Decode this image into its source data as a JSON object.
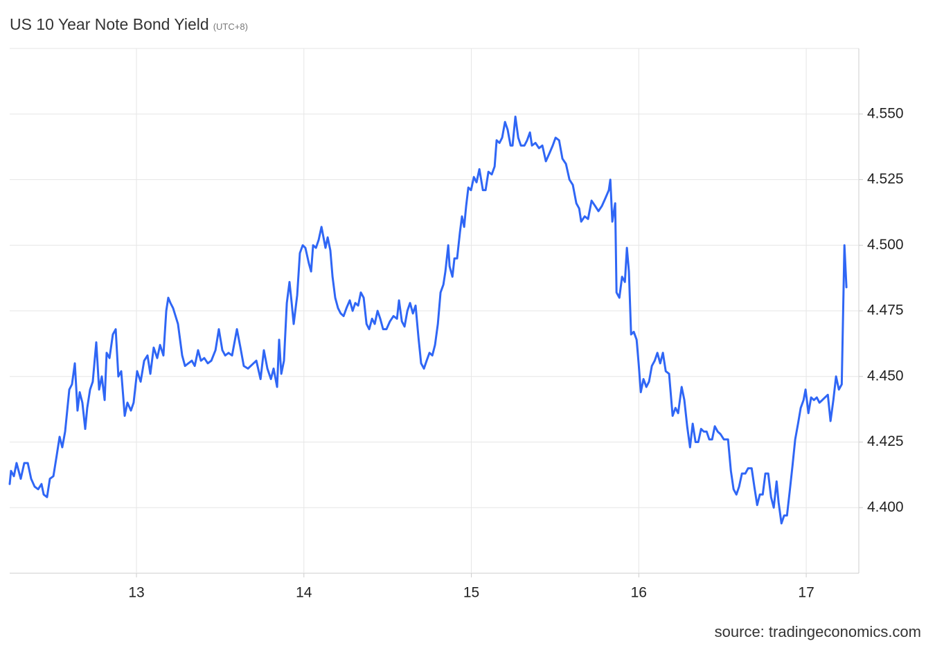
{
  "chart_data": {
    "type": "line",
    "title": "US 10 Year Note Bond Yield",
    "subtitle": "(UTC+8)",
    "source": "source: tradingeconomics.com",
    "color": "#2f66f5",
    "grid": true,
    "y_axis_side": "right",
    "xlim": [
      12.243,
      17.314
    ],
    "xticks": [
      13,
      14,
      15,
      16,
      17
    ],
    "ylim": [
      4.375,
      4.575
    ],
    "yticks": [
      {
        "value": 4.4,
        "label": "4.400"
      },
      4.425,
      {
        "value": 4.45,
        "label": "4.450"
      },
      4.475,
      {
        "value": 4.5,
        "label": "4.500"
      },
      4.525,
      {
        "value": 4.55,
        "label": "4.550"
      }
    ],
    "x": [
      12.243,
      12.251,
      12.268,
      12.284,
      12.309,
      12.33,
      12.351,
      12.371,
      12.392,
      12.413,
      12.433,
      12.446,
      12.466,
      12.483,
      12.504,
      12.524,
      12.541,
      12.557,
      12.574,
      12.599,
      12.615,
      12.632,
      12.648,
      12.661,
      12.677,
      12.694,
      12.706,
      12.723,
      12.739,
      12.76,
      12.777,
      12.793,
      12.81,
      12.822,
      12.839,
      12.859,
      12.876,
      12.892,
      12.909,
      12.93,
      12.946,
      12.967,
      12.983,
      13.004,
      13.025,
      13.046,
      13.066,
      13.083,
      13.103,
      13.124,
      13.141,
      13.161,
      13.178,
      13.19,
      13.203,
      13.219,
      13.248,
      13.273,
      13.29,
      13.31,
      13.331,
      13.348,
      13.368,
      13.385,
      13.405,
      13.426,
      13.447,
      13.472,
      13.492,
      13.513,
      13.53,
      13.55,
      13.571,
      13.6,
      13.621,
      13.641,
      13.666,
      13.699,
      13.716,
      13.741,
      13.761,
      13.782,
      13.803,
      13.819,
      13.84,
      13.852,
      13.865,
      13.881,
      13.898,
      13.914,
      13.927,
      13.939,
      13.96,
      13.976,
      13.993,
      14.009,
      14.03,
      14.043,
      14.055,
      14.072,
      14.088,
      14.105,
      14.117,
      14.129,
      14.142,
      14.158,
      14.171,
      14.187,
      14.204,
      14.22,
      14.237,
      14.254,
      14.274,
      14.291,
      14.307,
      14.324,
      14.34,
      14.357,
      14.374,
      14.39,
      14.407,
      14.423,
      14.44,
      14.456,
      14.473,
      14.493,
      14.514,
      14.535,
      14.556,
      14.568,
      14.585,
      14.601,
      14.618,
      14.634,
      14.651,
      14.667,
      14.684,
      14.7,
      14.717,
      14.733,
      14.75,
      14.767,
      14.783,
      14.8,
      14.816,
      14.833,
      14.845,
      14.862,
      14.87,
      14.887,
      14.899,
      14.915,
      14.932,
      14.944,
      14.957,
      14.969,
      14.982,
      14.998,
      15.015,
      15.031,
      15.048,
      15.069,
      15.085,
      15.102,
      15.122,
      15.139,
      15.151,
      15.168,
      15.184,
      15.201,
      15.217,
      15.234,
      15.246,
      15.263,
      15.28,
      15.296,
      15.317,
      15.333,
      15.35,
      15.362,
      15.383,
      15.404,
      15.424,
      15.445,
      15.466,
      15.486,
      15.503,
      15.524,
      15.544,
      15.565,
      15.586,
      15.606,
      15.627,
      15.644,
      15.656,
      15.677,
      15.697,
      15.718,
      15.739,
      15.759,
      15.78,
      15.801,
      15.821,
      15.83,
      15.842,
      15.859,
      15.867,
      15.884,
      15.9,
      15.917,
      15.929,
      15.941,
      15.954,
      15.97,
      15.987,
      15.999,
      16.012,
      16.028,
      16.045,
      16.061,
      16.078,
      16.095,
      16.111,
      16.128,
      16.144,
      16.161,
      16.181,
      16.202,
      16.219,
      16.235,
      16.256,
      16.272,
      16.289,
      16.306,
      16.322,
      16.339,
      16.355,
      16.372,
      16.388,
      16.405,
      16.421,
      16.438,
      16.454,
      16.471,
      16.488,
      16.508,
      16.533,
      16.55,
      16.566,
      16.583,
      16.599,
      16.616,
      16.636,
      16.653,
      16.674,
      16.69,
      16.707,
      16.723,
      16.74,
      16.756,
      16.773,
      16.79,
      16.806,
      16.823,
      16.835,
      16.852,
      16.868,
      16.885,
      16.901,
      16.918,
      16.934,
      16.951,
      16.967,
      16.984,
      16.996,
      17.013,
      17.029,
      17.046,
      17.063,
      17.079,
      17.096,
      17.112,
      17.129,
      17.145,
      17.162,
      17.178,
      17.195,
      17.212,
      17.228,
      17.24
    ],
    "values": [
      4.409,
      4.414,
      4.412,
      4.417,
      4.411,
      4.417,
      4.417,
      4.411,
      4.408,
      4.407,
      4.409,
      4.405,
      4.404,
      4.411,
      4.412,
      4.42,
      4.427,
      4.423,
      4.429,
      4.445,
      4.447,
      4.455,
      4.437,
      4.444,
      4.44,
      4.43,
      4.438,
      4.445,
      4.448,
      4.463,
      4.445,
      4.45,
      4.441,
      4.459,
      4.457,
      4.466,
      4.468,
      4.45,
      4.452,
      4.435,
      4.44,
      4.437,
      4.44,
      4.452,
      4.448,
      4.456,
      4.458,
      4.451,
      4.461,
      4.457,
      4.462,
      4.458,
      4.475,
      4.48,
      4.478,
      4.476,
      4.47,
      4.458,
      4.454,
      4.455,
      4.456,
      4.454,
      4.46,
      4.456,
      4.457,
      4.455,
      4.456,
      4.46,
      4.468,
      4.46,
      4.458,
      4.459,
      4.458,
      4.468,
      4.461,
      4.454,
      4.453,
      4.455,
      4.456,
      4.449,
      4.46,
      4.453,
      4.449,
      4.453,
      4.446,
      4.464,
      4.451,
      4.456,
      4.478,
      4.486,
      4.478,
      4.47,
      4.481,
      4.497,
      4.5,
      4.499,
      4.493,
      4.49,
      4.5,
      4.499,
      4.502,
      4.507,
      4.503,
      4.499,
      4.503,
      4.498,
      4.488,
      4.48,
      4.476,
      4.474,
      4.473,
      4.476,
      4.479,
      4.475,
      4.478,
      4.477,
      4.482,
      4.48,
      4.47,
      4.468,
      4.472,
      4.47,
      4.475,
      4.472,
      4.468,
      4.468,
      4.471,
      4.473,
      4.472,
      4.479,
      4.471,
      4.469,
      4.475,
      4.478,
      4.474,
      4.477,
      4.465,
      4.455,
      4.453,
      4.456,
      4.459,
      4.458,
      4.462,
      4.47,
      4.482,
      4.485,
      4.49,
      4.5,
      4.492,
      4.488,
      4.495,
      4.495,
      4.505,
      4.511,
      4.507,
      4.515,
      4.522,
      4.521,
      4.526,
      4.524,
      4.529,
      4.521,
      4.521,
      4.528,
      4.527,
      4.53,
      4.54,
      4.539,
      4.541,
      4.547,
      4.544,
      4.538,
      4.538,
      4.549,
      4.541,
      4.538,
      4.538,
      4.54,
      4.543,
      4.538,
      4.539,
      4.537,
      4.538,
      4.532,
      4.535,
      4.538,
      4.541,
      4.54,
      4.533,
      4.531,
      4.525,
      4.523,
      4.516,
      4.514,
      4.509,
      4.511,
      4.51,
      4.517,
      4.515,
      4.513,
      4.515,
      4.518,
      4.521,
      4.525,
      4.509,
      4.516,
      4.482,
      4.48,
      4.488,
      4.486,
      4.499,
      4.49,
      4.466,
      4.467,
      4.464,
      4.455,
      4.444,
      4.449,
      4.446,
      4.448,
      4.454,
      4.456,
      4.459,
      4.455,
      4.459,
      4.452,
      4.451,
      4.435,
      4.438,
      4.436,
      4.446,
      4.441,
      4.431,
      4.423,
      4.432,
      4.425,
      4.425,
      4.43,
      4.429,
      4.429,
      4.426,
      4.426,
      4.431,
      4.429,
      4.428,
      4.426,
      4.426,
      4.414,
      4.407,
      4.405,
      4.408,
      4.413,
      4.413,
      4.415,
      4.415,
      4.408,
      4.401,
      4.405,
      4.405,
      4.413,
      4.413,
      4.404,
      4.4,
      4.41,
      4.402,
      4.394,
      4.397,
      4.397,
      4.406,
      4.416,
      4.426,
      4.432,
      4.438,
      4.441,
      4.445,
      4.436,
      4.442,
      4.441,
      4.442,
      4.44,
      4.441,
      4.442,
      4.443,
      4.433,
      4.441,
      4.45,
      4.445,
      4.447,
      4.5,
      4.484
    ]
  }
}
